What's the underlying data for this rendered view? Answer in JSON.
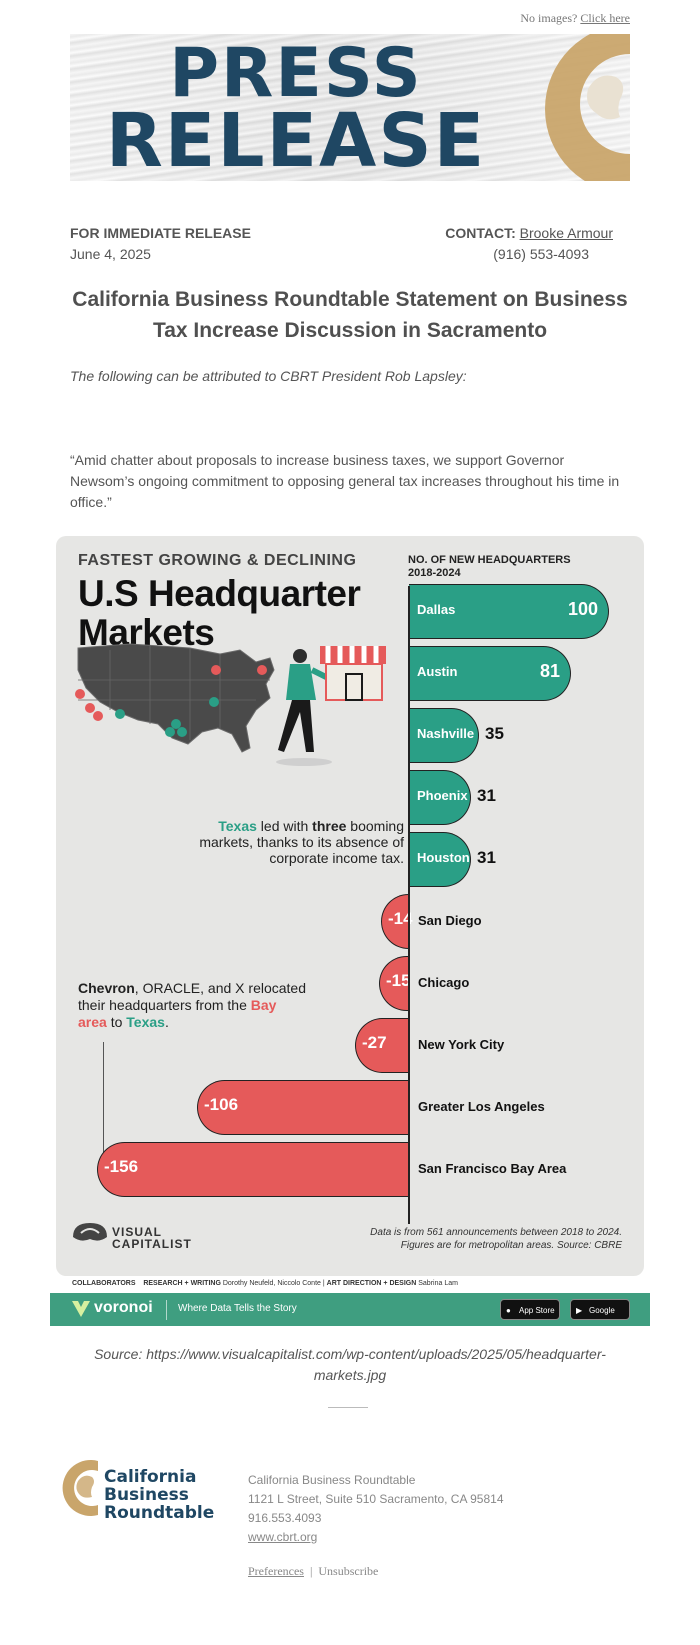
{
  "top_bar": {
    "no_images_text": "No images?",
    "click_here_label": "Click here"
  },
  "banner": {
    "word1": "PRESS",
    "word2": "RELEASE",
    "logo_color": "#c9a56b",
    "text_color": "#1f4763"
  },
  "release": {
    "for_immediate": "FOR IMMEDIATE RELEASE",
    "date": "June 4,  2025",
    "contact_label": "CONTACT:",
    "contact_name": "Brooke Armour",
    "phone": "(916) 553-4093"
  },
  "headline": "California Business Roundtable Statement on Business Tax Increase Discussion in Sacramento",
  "attribution": "The following can be attributed to CBRT President Rob Lapsley:",
  "quote": "“Amid chatter about proposals to increase business taxes, we support Governor Newsom’s ongoing commitment to opposing general tax increases throughout his time in office.”",
  "infographic": {
    "title_small": "FASTEST GROWING & DECLINING",
    "title_big_1": "U.S Headquarter",
    "title_big_2": "Markets",
    "column_head_1": "NO. OF NEW HEADQUARTERS",
    "column_head_2": "2018-2024",
    "texas_note": {
      "p1": "Texas",
      "p2": " led with ",
      "p3": "three",
      "p4": " booming markets, thanks to its absence of corporate income tax."
    },
    "reloc_note": {
      "p1": "Chevron",
      "p2": ", ORACLE, and X relocated their headquarters from the ",
      "p3": "Bay area",
      "p4": " to ",
      "p5": "Texas",
      "p6": "."
    },
    "brand_1": "VISUAL",
    "brand_2": "CAPITALIST",
    "data_note_1": "Data is from 561 announcements between 2018 to 2024.",
    "data_note_2": "Figures are for metropolitan areas. Source: CBRE",
    "positive_color": "#2a9f86",
    "negative_color": "#e55a5a"
  },
  "chart_data": {
    "type": "bar",
    "title": "U.S Headquarter Markets",
    "subtitle": "FASTEST GROWING & DECLINING",
    "ylabel": "NO. OF NEW HEADQUARTERS 2018-2024",
    "categories": [
      "Dallas",
      "Austin",
      "Nashville",
      "Phoenix",
      "Houston",
      "San Diego",
      "Chicago",
      "New York City",
      "Greater Los Angeles",
      "San Francisco Bay Area"
    ],
    "values": [
      100,
      81,
      35,
      31,
      31,
      -14,
      -15,
      -27,
      -106,
      -156
    ]
  },
  "collaborators": {
    "label": "COLLABORATORS",
    "research": "RESEARCH + WRITING",
    "research_names": "Dorothy Neufeld, Niccolo Conte",
    "art": "ART DIRECTION + DESIGN",
    "art_names": "Sabrina Lam"
  },
  "voronoi": {
    "brand": "voronoi",
    "tagline": "Where Data Tells the Story",
    "app_store": "App Store",
    "google_play": "Google Play"
  },
  "source": "Source: https://www.visualcapitalist.com/wp-content/uploads/2025/05/headquarter-markets.jpg",
  "footer": {
    "logo_1": "California",
    "logo_2": "Business",
    "logo_3": "Roundtable",
    "org": "California Business Roundtable",
    "address": "1121 L Street, Suite 510 Sacramento, CA 95814",
    "phone": "916.553.4093",
    "website": "www.cbrt.org",
    "preferences": "Preferences",
    "separator": "|",
    "unsubscribe": "Unsubscribe"
  }
}
